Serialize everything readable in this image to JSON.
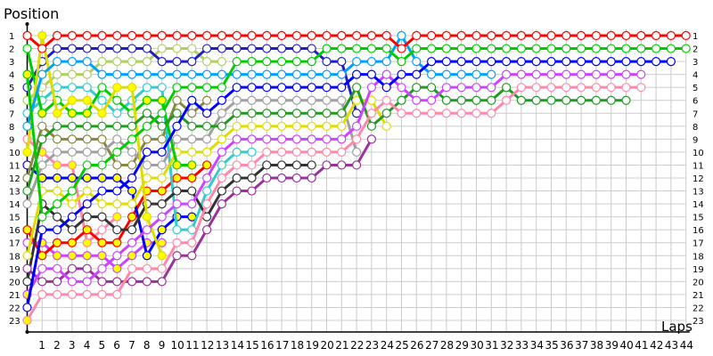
{
  "chart_data": {
    "type": "line",
    "title": "",
    "ylabel": "Position",
    "xlabel": "Laps",
    "x_ticks": [
      1,
      2,
      3,
      4,
      5,
      6,
      7,
      8,
      9,
      10,
      11,
      12,
      13,
      14,
      15,
      16,
      17,
      18,
      19,
      20,
      21,
      22,
      23,
      24,
      25,
      26,
      27,
      28,
      29,
      30,
      31,
      32,
      33,
      34,
      35,
      36,
      37,
      38,
      39,
      40,
      41,
      42,
      43,
      44
    ],
    "y_ticks": [
      1,
      2,
      3,
      4,
      5,
      6,
      7,
      8,
      9,
      10,
      11,
      12,
      13,
      14,
      15,
      16,
      17,
      18,
      19,
      20,
      21,
      22,
      23
    ],
    "xlim": [
      0,
      44
    ],
    "ylim": [
      1,
      23
    ],
    "y_inverted": true,
    "grid": true,
    "marker_fill": "#ffffff",
    "highlight_marker_fill": "#ffff00",
    "series": [
      {
        "color": "#ff88aa",
        "positions": [
          9,
          10,
          11,
          11,
          17,
          16,
          15
        ],
        "yellow_marker_laps": [
          1,
          2,
          3,
          4,
          6
        ]
      },
      {
        "color": "#cc44ff",
        "positions": [
          17,
          17,
          18,
          18,
          18,
          18,
          19,
          18,
          17,
          17
        ],
        "yellow_marker_laps": [
          1,
          2,
          3,
          4,
          5,
          6,
          7,
          8,
          9
        ]
      },
      {
        "color": "#ff0000",
        "positions": [
          16,
          18,
          17,
          17,
          16,
          17,
          17,
          15,
          13,
          13,
          12,
          12,
          11
        ],
        "yellow_marker_laps": [
          0,
          1,
          2,
          3,
          4,
          5,
          6,
          7,
          8,
          9,
          10,
          11,
          12
        ]
      },
      {
        "color": "#0000ff",
        "positions": [
          11,
          12,
          12,
          12,
          12,
          12,
          12,
          13,
          18,
          16,
          15,
          15
        ],
        "yellow_marker_laps": [
          1,
          2,
          3,
          4,
          5,
          6,
          7,
          8,
          9,
          10,
          11
        ]
      },
      {
        "color": "#888844",
        "positions": [
          12,
          8,
          9,
          9,
          9,
          9,
          11,
          11,
          9,
          9,
          6,
          7,
          6
        ],
        "yellow_marker_laps": []
      },
      {
        "color": "#b0d060",
        "positions": [
          6,
          5,
          4,
          4,
          4,
          3,
          3,
          3,
          3,
          2,
          2,
          2,
          3,
          3
        ],
        "yellow_marker_laps": []
      },
      {
        "color": "#33cccc",
        "positions": [
          7,
          6,
          5,
          5,
          5,
          6,
          7,
          6,
          5,
          5,
          16,
          16,
          13,
          11,
          10,
          10
        ],
        "yellow_marker_laps": []
      },
      {
        "color": "#333333",
        "positions": [
          20,
          14,
          15,
          16,
          15,
          15,
          16,
          16,
          14,
          14,
          13,
          13,
          15,
          13,
          12,
          12,
          11,
          11,
          11,
          11
        ],
        "yellow_marker_laps": []
      },
      {
        "color": "#993399",
        "positions": [
          19,
          20,
          20,
          19,
          19,
          20,
          20,
          20,
          20,
          20,
          18,
          18,
          16,
          14,
          13,
          13,
          12,
          12,
          12,
          12,
          11,
          11,
          11,
          9
        ],
        "yellow_marker_laps": []
      },
      {
        "color": "#a0a0a0",
        "positions": [
          14,
          11,
          10,
          10,
          10,
          10,
          9,
          10,
          11,
          11,
          9,
          9,
          9,
          7,
          6,
          6,
          6,
          6,
          6,
          6,
          6,
          6,
          10
        ],
        "yellow_marker_laps": []
      },
      {
        "color": "#2020c0",
        "positions": [
          5,
          3,
          2,
          2,
          2,
          2,
          2,
          2,
          2,
          3,
          3,
          3,
          2,
          2,
          2,
          2,
          2,
          2,
          2,
          2,
          3,
          3,
          7
        ],
        "yellow_marker_laps": []
      },
      {
        "color": "#dddd00",
        "positions": [
          18,
          13,
          13,
          14,
          13,
          14,
          14,
          14,
          12,
          12,
          10,
          10,
          10,
          9,
          8,
          8,
          8,
          8,
          8,
          8,
          8,
          8,
          6,
          6,
          8
        ],
        "yellow_marker_laps": []
      },
      {
        "color": "#00cc00",
        "positions": [
          2,
          7,
          6,
          7,
          7,
          5,
          6,
          7,
          6,
          6,
          11,
          11
        ],
        "yellow_marker_laps": [
          1,
          3,
          4,
          8,
          9,
          10,
          11
        ]
      },
      {
        "color": "#dddd00",
        "positions": [
          10,
          1,
          7,
          6,
          6,
          7,
          5,
          5,
          15,
          18
        ],
        "yellow_marker_laps": [
          0,
          1,
          2,
          3,
          4,
          5,
          6,
          7,
          8,
          9
        ]
      },
      {
        "color": "#229922",
        "positions": [
          13,
          9,
          8,
          8,
          8,
          8,
          8,
          8,
          7,
          8,
          7,
          8,
          8,
          8,
          7,
          7,
          7,
          7,
          7,
          7,
          7,
          7,
          5,
          8,
          7,
          6,
          5,
          5,
          6,
          6,
          6,
          6,
          5,
          6,
          6,
          6,
          6,
          6,
          6,
          6,
          6
        ],
        "yellow_marker_laps": []
      },
      {
        "color": "#ff88aa",
        "positions": [
          23,
          21,
          21,
          21,
          21,
          21,
          21,
          19,
          19,
          19,
          17,
          17,
          14,
          12,
          11,
          11,
          10,
          10,
          10,
          10,
          10,
          10,
          9,
          7,
          6,
          7,
          7,
          7,
          7,
          7,
          7,
          7,
          6,
          5,
          5,
          5,
          5,
          5,
          5,
          5,
          5,
          5
        ],
        "yellow_marker_laps": [
          0
        ]
      },
      {
        "color": "#cc44ff",
        "positions": [
          21,
          19,
          19,
          20,
          20,
          19,
          18,
          17,
          16,
          15,
          14,
          14,
          12,
          10,
          9,
          9,
          9,
          9,
          9,
          9,
          9,
          9,
          8,
          5,
          4,
          5,
          6,
          6,
          5,
          5,
          5,
          5,
          4,
          4,
          4,
          4,
          4,
          4,
          4,
          4,
          4,
          4
        ],
        "yellow_marker_laps": [
          0
        ]
      },
      {
        "color": "#00a0ff",
        "positions": [
          8,
          4,
          3,
          3,
          3,
          4,
          4,
          4,
          4,
          4,
          4,
          4,
          4,
          4,
          4,
          4,
          4,
          4,
          4,
          4,
          4,
          4,
          3,
          3,
          3,
          1,
          3,
          4,
          4,
          4,
          4,
          4
        ],
        "yellow_marker_laps": []
      },
      {
        "color": "#0000ff",
        "positions": [
          22,
          16,
          16,
          15,
          14,
          13,
          13,
          12,
          10,
          10,
          8,
          6,
          7,
          6,
          5,
          5,
          5,
          5,
          5,
          5,
          5,
          5,
          4,
          4,
          5,
          4,
          4,
          3,
          3,
          3,
          3,
          3,
          3,
          3,
          3,
          3,
          3,
          3,
          3,
          3,
          3,
          3,
          3,
          3
        ],
        "yellow_marker_laps": []
      },
      {
        "color": "#00cc00",
        "positions": [
          4,
          15,
          14,
          13,
          11,
          11,
          10,
          9,
          8,
          7,
          5,
          5,
          5,
          5,
          3,
          3,
          3,
          3,
          3,
          3,
          2,
          2,
          2,
          2,
          2,
          3,
          2,
          2,
          2,
          2,
          2,
          2,
          2,
          2,
          2,
          2,
          2,
          2,
          2,
          2,
          2,
          2,
          2,
          2,
          2
        ],
        "yellow_marker_laps": [
          0
        ]
      },
      {
        "color": "#ff0000",
        "positions": [
          1,
          2,
          1,
          1,
          1,
          1,
          1,
          1,
          1,
          1,
          1,
          1,
          1,
          1,
          1,
          1,
          1,
          1,
          1,
          1,
          1,
          1,
          1,
          1,
          1,
          2,
          1,
          1,
          1,
          1,
          1,
          1,
          1,
          1,
          1,
          1,
          1,
          1,
          1,
          1,
          1,
          1,
          1,
          1,
          1
        ],
        "yellow_marker_laps": []
      }
    ]
  }
}
